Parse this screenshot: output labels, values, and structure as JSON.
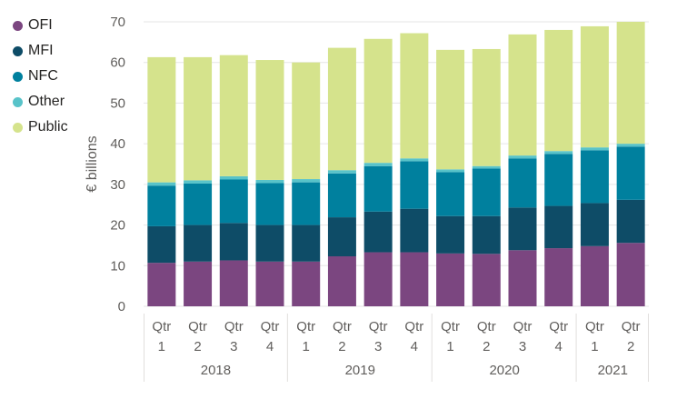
{
  "chart_data": {
    "type": "bar",
    "stacked": true,
    "title": "",
    "xlabel": "",
    "ylabel": "€ billions",
    "ylim": [
      0,
      70
    ],
    "yticks": [
      0,
      10,
      20,
      30,
      40,
      50,
      60,
      70
    ],
    "grid": true,
    "legend_position": "top-left",
    "categories": [
      {
        "quarter": "Qtr 1",
        "year": "2018"
      },
      {
        "quarter": "Qtr 2",
        "year": "2018"
      },
      {
        "quarter": "Qtr 3",
        "year": "2018"
      },
      {
        "quarter": "Qtr 4",
        "year": "2018"
      },
      {
        "quarter": "Qtr 1",
        "year": "2019"
      },
      {
        "quarter": "Qtr 2",
        "year": "2019"
      },
      {
        "quarter": "Qtr 3",
        "year": "2019"
      },
      {
        "quarter": "Qtr 4",
        "year": "2019"
      },
      {
        "quarter": "Qtr 1",
        "year": "2020"
      },
      {
        "quarter": "Qtr 2",
        "year": "2020"
      },
      {
        "quarter": "Qtr 3",
        "year": "2020"
      },
      {
        "quarter": "Qtr 4",
        "year": "2020"
      },
      {
        "quarter": "Qtr 1",
        "year": "2021"
      },
      {
        "quarter": "Qtr 2",
        "year": "2021"
      }
    ],
    "years": [
      "2018",
      "2019",
      "2020",
      "2021"
    ],
    "series": [
      {
        "name": "OFI",
        "color": "#7b4680",
        "values": [
          10.7,
          11.0,
          11.3,
          11.0,
          11.0,
          12.3,
          13.3,
          13.3,
          13.0,
          12.9,
          13.8,
          14.3,
          14.8,
          15.6
        ]
      },
      {
        "name": "MFI",
        "color": "#0e4c67",
        "values": [
          9.0,
          9.0,
          9.2,
          9.0,
          9.0,
          9.6,
          10.0,
          10.7,
          9.2,
          9.3,
          10.5,
          10.4,
          10.6,
          10.6
        ]
      },
      {
        "name": "NFC",
        "color": "#00809e",
        "values": [
          10.0,
          10.2,
          10.7,
          10.3,
          10.5,
          10.8,
          11.2,
          11.7,
          10.8,
          11.7,
          12.1,
          12.8,
          13.0,
          13.1
        ]
      },
      {
        "name": "Other",
        "color": "#58c3c9",
        "values": [
          0.8,
          0.8,
          0.8,
          0.8,
          0.8,
          0.8,
          0.8,
          0.7,
          0.7,
          0.6,
          0.7,
          0.7,
          0.7,
          0.7
        ]
      },
      {
        "name": "Public",
        "color": "#d5e38c",
        "values": [
          30.8,
          30.3,
          29.8,
          29.5,
          28.7,
          30.1,
          30.5,
          30.8,
          29.4,
          28.8,
          29.8,
          29.8,
          29.8,
          30.0
        ]
      }
    ]
  }
}
